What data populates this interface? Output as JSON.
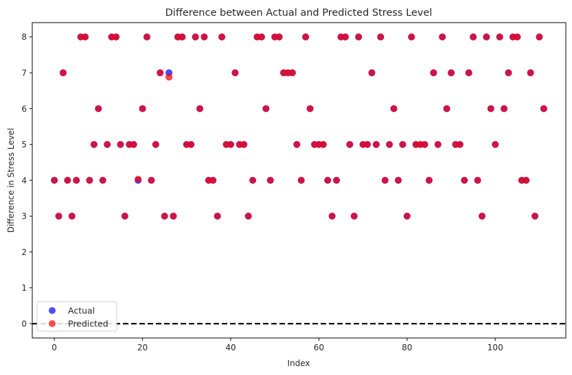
{
  "chart_data": {
    "type": "scatter",
    "title": "Difference between Actual and Predicted Stress Level",
    "xlabel": "Index",
    "ylabel": "Difference in Stress Level",
    "xlim": [
      -5,
      116
    ],
    "ylim": [
      -0.4,
      8.4
    ],
    "xticks": [
      0,
      20,
      40,
      60,
      80,
      100
    ],
    "yticks": [
      0,
      1,
      2,
      3,
      4,
      5,
      6,
      7,
      8
    ],
    "grid": false,
    "legend_position": "lower-left",
    "reference_line": {
      "y": 0,
      "style": "dashed",
      "color": "#000000"
    },
    "series": [
      {
        "name": "Actual",
        "color": "#0000ff",
        "alpha": 0.7,
        "x": [
          0,
          1,
          2,
          3,
          4,
          5,
          6,
          7,
          8,
          9,
          10,
          11,
          12,
          13,
          14,
          15,
          16,
          17,
          18,
          19,
          20,
          21,
          22,
          23,
          24,
          25,
          26,
          27,
          28,
          29,
          30,
          31,
          32,
          33,
          34,
          35,
          36,
          37,
          38,
          39,
          40,
          41,
          42,
          43,
          44,
          45,
          46,
          47,
          48,
          49,
          50,
          51,
          52,
          53,
          54,
          55,
          56,
          57,
          58,
          59,
          60,
          61,
          62,
          63,
          64,
          65,
          66,
          67,
          68,
          69,
          70,
          71,
          72,
          73,
          74,
          75,
          76,
          77,
          78,
          79,
          80,
          81,
          82,
          83,
          84,
          85,
          86,
          87,
          88,
          89,
          90,
          91,
          92,
          93,
          94,
          95,
          96,
          97,
          98,
          99,
          100,
          101,
          102,
          103,
          104,
          105,
          106,
          107,
          108,
          109,
          110,
          111
        ],
        "y": [
          4,
          3,
          7,
          4,
          3,
          4,
          8,
          8,
          4,
          5,
          6,
          4,
          5,
          8,
          8,
          5,
          3,
          5,
          5,
          4,
          6,
          8,
          4,
          5,
          7,
          3,
          7,
          3,
          8,
          8,
          5,
          5,
          8,
          6,
          8,
          4,
          4,
          3,
          8,
          5,
          5,
          7,
          5,
          5,
          3,
          4,
          8,
          8,
          6,
          4,
          8,
          8,
          7,
          7,
          7,
          5,
          4,
          8,
          6,
          5,
          5,
          5,
          4,
          3,
          4,
          8,
          8,
          5,
          3,
          8,
          5,
          5,
          7,
          5,
          8,
          4,
          5,
          6,
          4,
          5,
          3,
          8,
          5,
          5,
          5,
          4,
          7,
          5,
          8,
          6,
          7,
          5,
          5,
          4,
          7,
          8,
          4,
          3,
          8,
          6,
          5,
          8,
          6,
          7,
          8,
          8,
          4,
          4,
          7,
          3,
          8,
          6
        ]
      },
      {
        "name": "Predicted",
        "color": "#ff0000",
        "alpha": 0.7,
        "x": [
          0,
          1,
          2,
          3,
          4,
          5,
          6,
          7,
          8,
          9,
          10,
          11,
          12,
          13,
          14,
          15,
          16,
          17,
          18,
          19,
          20,
          21,
          22,
          23,
          24,
          25,
          26,
          27,
          28,
          29,
          30,
          31,
          32,
          33,
          34,
          35,
          36,
          37,
          38,
          39,
          40,
          41,
          42,
          43,
          44,
          45,
          46,
          47,
          48,
          49,
          50,
          51,
          52,
          53,
          54,
          55,
          56,
          57,
          58,
          59,
          60,
          61,
          62,
          63,
          64,
          65,
          66,
          67,
          68,
          69,
          70,
          71,
          72,
          73,
          74,
          75,
          76,
          77,
          78,
          79,
          80,
          81,
          82,
          83,
          84,
          85,
          86,
          87,
          88,
          89,
          90,
          91,
          92,
          93,
          94,
          95,
          96,
          97,
          98,
          99,
          100,
          101,
          102,
          103,
          104,
          105,
          106,
          107,
          108,
          109,
          110,
          111
        ],
        "y": [
          4,
          3,
          7,
          4,
          3,
          4,
          8,
          8,
          4,
          5,
          6,
          4,
          5,
          8,
          8,
          5,
          3,
          5,
          5,
          4.03,
          6,
          8,
          4,
          5,
          7,
          3,
          6.88,
          3,
          8,
          8,
          5,
          5,
          8,
          6,
          8,
          4,
          4,
          3,
          8,
          5,
          5,
          7,
          5,
          5,
          3,
          4,
          8,
          8,
          6,
          4,
          8,
          8,
          7,
          7,
          7,
          5,
          4,
          8,
          6,
          5,
          5,
          5,
          4,
          3,
          4,
          8,
          8,
          5,
          3,
          8,
          5,
          5,
          7,
          5,
          8,
          4,
          5,
          6,
          4,
          5,
          3,
          8,
          5,
          5,
          5,
          4,
          7,
          5,
          8,
          6,
          7,
          5,
          5,
          4,
          7,
          8,
          4,
          3,
          8,
          6,
          5,
          8,
          6,
          7,
          8,
          8,
          4,
          4,
          7,
          3,
          8,
          6
        ]
      }
    ]
  }
}
